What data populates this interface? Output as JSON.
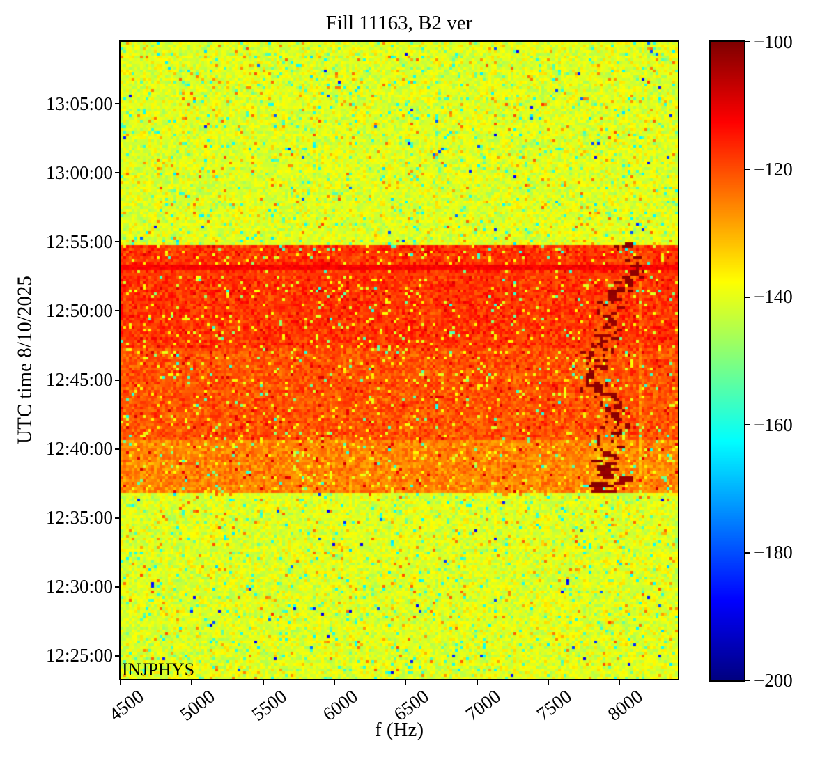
{
  "chart_data": {
    "type": "heatmap",
    "title": "Fill 11163, B2 ver",
    "xlabel": "f (Hz)",
    "ylabel": "UTC time 8/10/2025",
    "annotation": "INJPHYS",
    "colormap": "jet",
    "x_range_hz": [
      4500,
      8410
    ],
    "x_ticks": [
      4500,
      5000,
      5500,
      6000,
      6500,
      7000,
      7500,
      8000
    ],
    "y_time_top": "13:09:30",
    "y_time_bottom": "12:23:20",
    "y_ticks": [
      "13:05:00",
      "13:00:00",
      "12:55:00",
      "12:50:00",
      "12:45:00",
      "12:40:00",
      "12:35:00",
      "12:30:00",
      "12:25:00"
    ],
    "colorbar": {
      "min": -200,
      "max": -100,
      "ticks": [
        -100,
        -120,
        -140,
        -160,
        -180,
        -200
      ]
    },
    "regions": [
      {
        "time_start": "12:23:20",
        "time_end": "12:36:50",
        "level_db": -140.5,
        "noise_db": 5.5,
        "desc": "yellow-green background noise"
      },
      {
        "time_start": "12:36:50",
        "time_end": "12:40:40",
        "level_db": -125.5,
        "noise_db": 5.0,
        "desc": "light orange band"
      },
      {
        "time_start": "12:40:40",
        "time_end": "12:47:20",
        "level_db": -120.5,
        "noise_db": 5.0,
        "desc": "orange band"
      },
      {
        "time_start": "12:47:20",
        "time_end": "12:54:45",
        "level_db": -117.5,
        "noise_db": 5.0,
        "desc": "red-orange band"
      },
      {
        "time_start": "12:54:45",
        "time_end": "13:09:30",
        "level_db": -140.5,
        "noise_db": 5.5,
        "desc": "yellow-green background noise"
      }
    ],
    "features": [
      {
        "type": "horizontal_line",
        "time": "12:53:15",
        "level_db": -112,
        "desc": "dark line across all frequencies"
      },
      {
        "type": "horizontal_line",
        "time": "12:52:40",
        "level_db": -118,
        "desc": "fainter dark line"
      },
      {
        "type": "wandering_trace",
        "f_min": 7600,
        "f_max": 8080,
        "time_start": "12:36:55",
        "time_end": "12:55:00",
        "level_db": -101,
        "desc": "dark-red dashed meandering trace"
      },
      {
        "type": "vertical_line",
        "f_hz": 8150,
        "time_start": "12:37:00",
        "time_end": "12:54:00",
        "level_db": -121,
        "desc": "faint darker vertical line"
      }
    ]
  }
}
